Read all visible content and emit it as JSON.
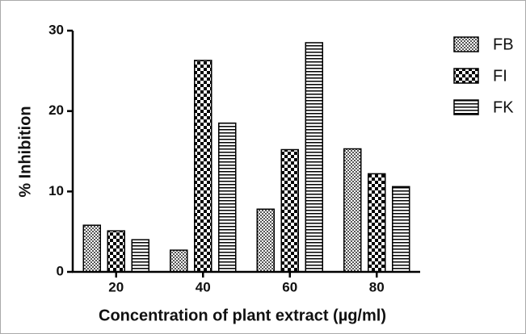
{
  "chart_data": {
    "type": "bar",
    "xlabel": "Concentration of plant extract (µg/ml)",
    "ylabel": "% Inhibition",
    "categories": [
      "20",
      "40",
      "60",
      "80"
    ],
    "series": [
      {
        "name": "FB",
        "color": "#555555",
        "values": [
          5.8,
          2.7,
          7.8,
          15.3
        ]
      },
      {
        "name": "FI",
        "color": "#000000",
        "values": [
          5.1,
          26.3,
          15.2,
          12.2
        ]
      },
      {
        "name": "FK",
        "color": "#000000",
        "values": [
          4.0,
          18.5,
          28.5,
          10.6
        ]
      }
    ],
    "ylim": [
      0,
      30
    ],
    "yticks": [
      0,
      10,
      20,
      30
    ],
    "grid": false,
    "legend": "upper right"
  }
}
